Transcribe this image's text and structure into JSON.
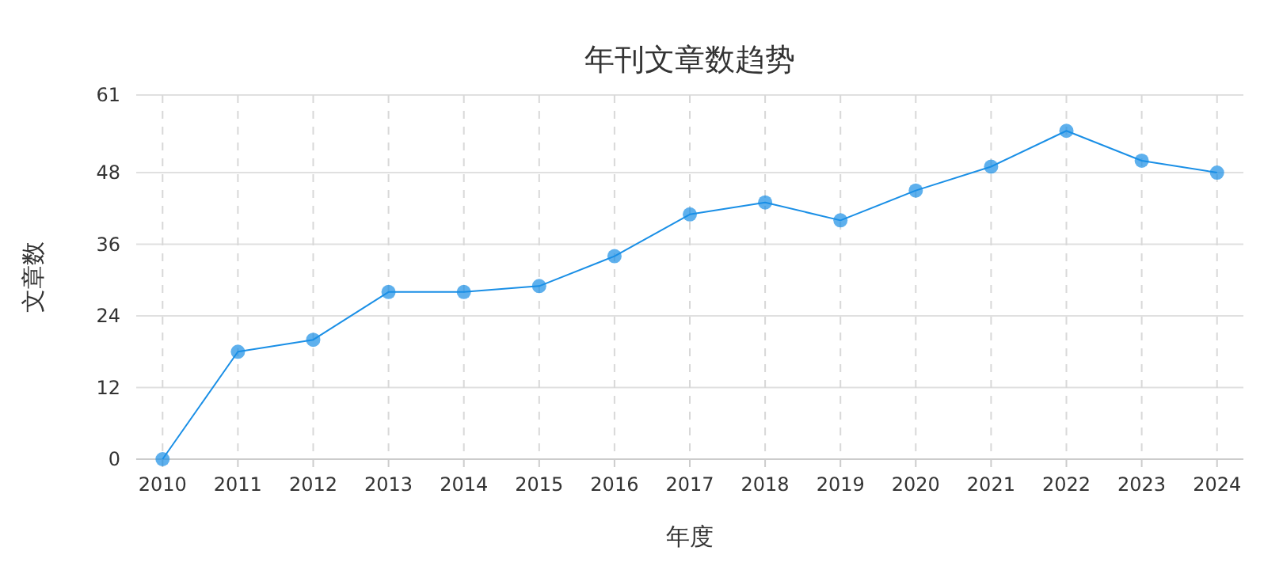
{
  "chart_data": {
    "type": "line",
    "title": "年刊文章数趋势",
    "xlabel": "年度",
    "ylabel": "文章数",
    "categories": [
      "2010",
      "2011",
      "2012",
      "2013",
      "2014",
      "2015",
      "2016",
      "2017",
      "2018",
      "2019",
      "2020",
      "2021",
      "2022",
      "2023",
      "2024"
    ],
    "series": [
      {
        "color": "#1a8fe6",
        "values": [
          0,
          18,
          20,
          28,
          28,
          29,
          34,
          41,
          43,
          40,
          45,
          49,
          55,
          50,
          48
        ]
      }
    ],
    "ylim": [
      0,
      61
    ],
    "yticks": [
      0,
      12,
      24,
      36,
      48,
      61
    ],
    "grid": true,
    "marker": "circle",
    "line_style": "solid"
  }
}
